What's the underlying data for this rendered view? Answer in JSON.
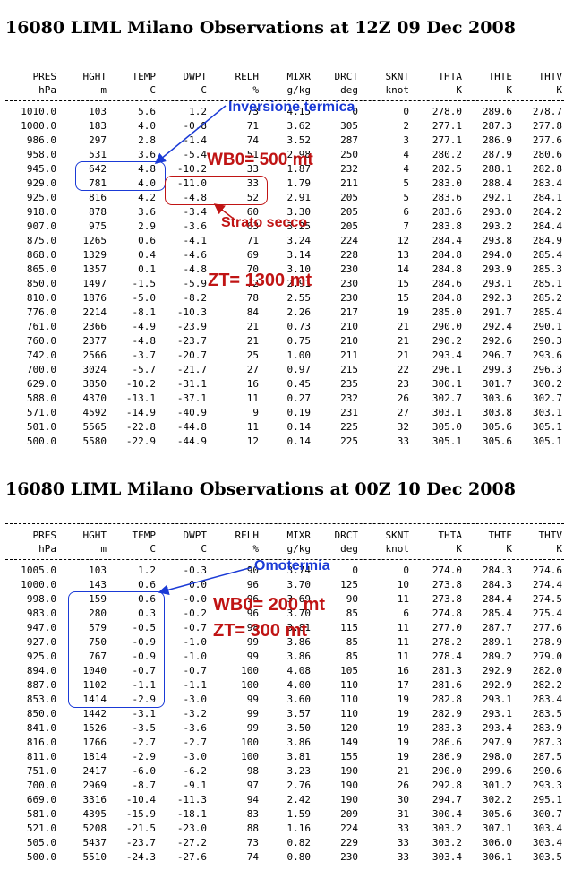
{
  "columns": [
    "PRES",
    "HGHT",
    "TEMP",
    "DWPT",
    "RELH",
    "MIXR",
    "DRCT",
    "SKNT",
    "THTA",
    "THTE",
    "THTV"
  ],
  "units": [
    "hPa",
    "m",
    "C",
    "C",
    "%",
    "g/kg",
    "deg",
    "knot",
    "K",
    "K",
    "K"
  ],
  "sounding1": {
    "title": "16080 LIML Milano Observations at 12Z 09 Dec 2008",
    "rows": [
      [
        "1010.0",
        "103",
        "5.6",
        "1.2",
        "73",
        "4.15",
        "0",
        "0",
        "278.0",
        "289.6",
        "278.7"
      ],
      [
        "1000.0",
        "183",
        "4.0",
        "-0.8",
        "71",
        "3.62",
        "305",
        "2",
        "277.1",
        "287.3",
        "277.8"
      ],
      [
        "986.0",
        "297",
        "2.8",
        "-1.4",
        "74",
        "3.52",
        "287",
        "3",
        "277.1",
        "286.9",
        "277.6"
      ],
      [
        "958.0",
        "531",
        "3.6",
        "-5.4",
        "51",
        "2.98",
        "250",
        "4",
        "280.2",
        "287.9",
        "280.6"
      ],
      [
        "945.0",
        "642",
        "4.8",
        "-10.2",
        "33",
        "1.87",
        "232",
        "4",
        "282.5",
        "288.1",
        "282.8"
      ],
      [
        "929.0",
        "781",
        "4.0",
        "-11.0",
        "33",
        "1.79",
        "211",
        "5",
        "283.0",
        "288.4",
        "283.4"
      ],
      [
        "925.0",
        "816",
        "4.2",
        "-4.8",
        "52",
        "2.91",
        "205",
        "5",
        "283.6",
        "292.1",
        "284.1"
      ],
      [
        "918.0",
        "878",
        "3.6",
        "-3.4",
        "60",
        "3.30",
        "205",
        "6",
        "283.6",
        "293.0",
        "284.2"
      ],
      [
        "907.0",
        "975",
        "2.9",
        "-3.6",
        "63",
        "3.25",
        "205",
        "7",
        "283.8",
        "293.2",
        "284.4"
      ],
      [
        "875.0",
        "1265",
        "0.6",
        "-4.1",
        "71",
        "3.24",
        "224",
        "12",
        "284.4",
        "293.8",
        "284.9"
      ],
      [
        "868.0",
        "1329",
        "0.4",
        "-4.6",
        "69",
        "3.14",
        "228",
        "13",
        "284.8",
        "294.0",
        "285.4"
      ],
      [
        "865.0",
        "1357",
        "0.1",
        "-4.8",
        "70",
        "3.10",
        "230",
        "14",
        "284.8",
        "293.9",
        "285.3"
      ],
      [
        "850.0",
        "1497",
        "-1.5",
        "-5.9",
        "72",
        "2.91",
        "230",
        "15",
        "284.6",
        "293.1",
        "285.1"
      ],
      [
        "810.0",
        "1876",
        "-5.0",
        "-8.2",
        "78",
        "2.55",
        "230",
        "15",
        "284.8",
        "292.3",
        "285.2"
      ],
      [
        "776.0",
        "2214",
        "-8.1",
        "-10.3",
        "84",
        "2.26",
        "217",
        "19",
        "285.0",
        "291.7",
        "285.4"
      ],
      [
        "761.0",
        "2366",
        "-4.9",
        "-23.9",
        "21",
        "0.73",
        "210",
        "21",
        "290.0",
        "292.4",
        "290.1"
      ],
      [
        "760.0",
        "2377",
        "-4.8",
        "-23.7",
        "21",
        "0.75",
        "210",
        "21",
        "290.2",
        "292.6",
        "290.3"
      ],
      [
        "742.0",
        "2566",
        "-3.7",
        "-20.7",
        "25",
        "1.00",
        "211",
        "21",
        "293.4",
        "296.7",
        "293.6"
      ],
      [
        "700.0",
        "3024",
        "-5.7",
        "-21.7",
        "27",
        "0.97",
        "215",
        "22",
        "296.1",
        "299.3",
        "296.3"
      ],
      [
        "629.0",
        "3850",
        "-10.2",
        "-31.1",
        "16",
        "0.45",
        "235",
        "23",
        "300.1",
        "301.7",
        "300.2"
      ],
      [
        "588.0",
        "4370",
        "-13.1",
        "-37.1",
        "11",
        "0.27",
        "232",
        "26",
        "302.7",
        "303.6",
        "302.7"
      ],
      [
        "571.0",
        "4592",
        "-14.9",
        "-40.9",
        "9",
        "0.19",
        "231",
        "27",
        "303.1",
        "303.8",
        "303.1"
      ],
      [
        "501.0",
        "5565",
        "-22.8",
        "-44.8",
        "11",
        "0.14",
        "225",
        "32",
        "305.0",
        "305.6",
        "305.1"
      ],
      [
        "500.0",
        "5580",
        "-22.9",
        "-44.9",
        "12",
        "0.14",
        "225",
        "33",
        "305.1",
        "305.6",
        "305.1"
      ]
    ],
    "annotations": {
      "inversion": "Inversione termica",
      "wb0": "WB0= 500 mt",
      "dry_layer": "Strato secco",
      "zt": "ZT= 1300 mt"
    }
  },
  "sounding2": {
    "title": "16080 LIML Milano Observations at 00Z 10 Dec 2008",
    "rows": [
      [
        "1005.0",
        "103",
        "1.2",
        "-0.3",
        "90",
        "3.74",
        "0",
        "0",
        "274.0",
        "284.3",
        "274.6"
      ],
      [
        "1000.0",
        "143",
        "0.6",
        "0.0",
        "96",
        "3.70",
        "125",
        "10",
        "273.8",
        "284.3",
        "274.4"
      ],
      [
        "998.0",
        "159",
        "0.6",
        "-0.0",
        "96",
        "3.69",
        "90",
        "11",
        "273.8",
        "284.4",
        "274.5"
      ],
      [
        "983.0",
        "280",
        "0.3",
        "-0.2",
        "96",
        "3.70",
        "85",
        "6",
        "274.8",
        "285.4",
        "275.4"
      ],
      [
        "947.0",
        "579",
        "-0.5",
        "-0.7",
        "98",
        "3.81",
        "115",
        "11",
        "277.0",
        "287.7",
        "277.6"
      ],
      [
        "927.0",
        "750",
        "-0.9",
        "-1.0",
        "99",
        "3.86",
        "85",
        "11",
        "278.2",
        "289.1",
        "278.9"
      ],
      [
        "925.0",
        "767",
        "-0.9",
        "-1.0",
        "99",
        "3.86",
        "85",
        "11",
        "278.4",
        "289.2",
        "279.0"
      ],
      [
        "894.0",
        "1040",
        "-0.7",
        "-0.7",
        "100",
        "4.08",
        "105",
        "16",
        "281.3",
        "292.9",
        "282.0"
      ],
      [
        "887.0",
        "1102",
        "-1.1",
        "-1.1",
        "100",
        "4.00",
        "110",
        "17",
        "281.6",
        "292.9",
        "282.2"
      ],
      [
        "853.0",
        "1414",
        "-2.9",
        "-3.0",
        "99",
        "3.60",
        "110",
        "19",
        "282.8",
        "293.1",
        "283.4"
      ],
      [
        "850.0",
        "1442",
        "-3.1",
        "-3.2",
        "99",
        "3.57",
        "110",
        "19",
        "282.9",
        "293.1",
        "283.5"
      ],
      [
        "841.0",
        "1526",
        "-3.5",
        "-3.6",
        "99",
        "3.50",
        "120",
        "19",
        "283.3",
        "293.4",
        "283.9"
      ],
      [
        "816.0",
        "1766",
        "-2.7",
        "-2.7",
        "100",
        "3.86",
        "149",
        "19",
        "286.6",
        "297.9",
        "287.3"
      ],
      [
        "811.0",
        "1814",
        "-2.9",
        "-3.0",
        "100",
        "3.81",
        "155",
        "19",
        "286.9",
        "298.0",
        "287.5"
      ],
      [
        "751.0",
        "2417",
        "-6.0",
        "-6.2",
        "98",
        "3.23",
        "190",
        "21",
        "290.0",
        "299.6",
        "290.6"
      ],
      [
        "700.0",
        "2969",
        "-8.7",
        "-9.1",
        "97",
        "2.76",
        "190",
        "26",
        "292.8",
        "301.2",
        "293.3"
      ],
      [
        "669.0",
        "3316",
        "-10.4",
        "-11.3",
        "94",
        "2.42",
        "190",
        "30",
        "294.7",
        "302.2",
        "295.1"
      ],
      [
        "581.0",
        "4395",
        "-15.9",
        "-18.1",
        "83",
        "1.59",
        "209",
        "31",
        "300.4",
        "305.6",
        "300.7"
      ],
      [
        "521.0",
        "5208",
        "-21.5",
        "-23.0",
        "88",
        "1.16",
        "224",
        "33",
        "303.2",
        "307.1",
        "303.4"
      ],
      [
        "505.0",
        "5437",
        "-23.7",
        "-27.2",
        "73",
        "0.82",
        "229",
        "33",
        "303.2",
        "306.0",
        "303.4"
      ],
      [
        "500.0",
        "5510",
        "-24.3",
        "-27.6",
        "74",
        "0.80",
        "230",
        "33",
        "303.4",
        "306.1",
        "303.5"
      ]
    ],
    "annotations": {
      "isothermy": "Omotermia",
      "wb0": "WB0= 200 mt",
      "zt": "ZT= 300 mt"
    }
  }
}
